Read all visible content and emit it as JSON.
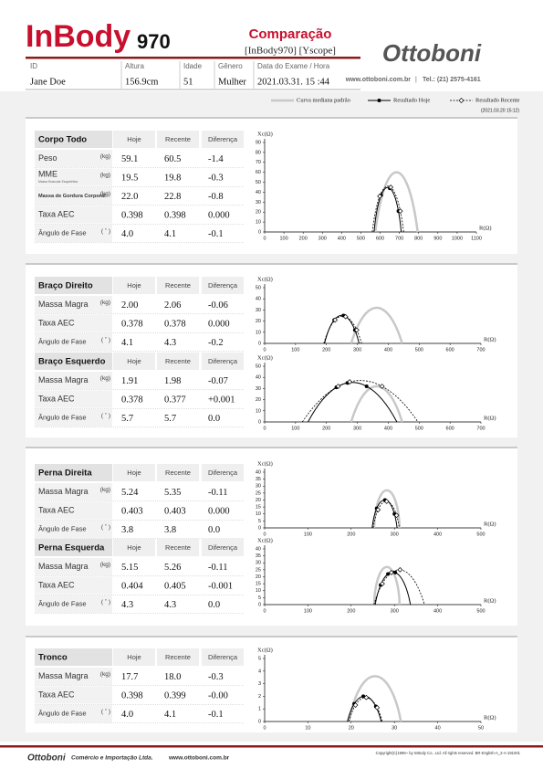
{
  "header": {
    "brand": "InBody",
    "model": "970",
    "title": "Comparação",
    "subtitle": "[InBody970] [Yscope]",
    "company": "Ottoboni",
    "website": "www.ottoboni.com.br",
    "phone": "Tel.: (21) 2575-4161"
  },
  "info": {
    "labels": [
      "ID",
      "Altura",
      "Idade",
      "Gênero",
      "Data do Exame / Hora"
    ],
    "values": [
      "Jane Doe",
      "156.9cm",
      "51",
      "Mulher",
      "2021.03.31. 15 :44"
    ]
  },
  "legend": {
    "items": [
      "Curva mediana padrão",
      "Resultado Hoje",
      "Resultado Recente"
    ],
    "date": "(2021.03.20 15:12)"
  },
  "tables": [
    {
      "title": "Corpo Todo",
      "columns": [
        "Hoje",
        "Recente",
        "Diferença"
      ],
      "rows": [
        {
          "label": "Peso",
          "unit": "(kg)",
          "values": [
            "59.1",
            "60.5",
            "-1.4"
          ]
        },
        {
          "label": "MME",
          "sublabel": "Massa Muscular Esquelética",
          "unit": "(kg)",
          "values": [
            "19.5",
            "19.8",
            "-0.3"
          ]
        },
        {
          "label": "Massa de Gordura Corporal",
          "unit": "(kg)",
          "values": [
            "22.0",
            "22.8",
            "-0.8"
          ]
        },
        {
          "label": "Taxa AEC",
          "values": [
            "0.398",
            "0.398",
            "0.000"
          ]
        },
        {
          "label": "Ângulo de Fase",
          "unit": "( ˚ )",
          "values": [
            "4.0",
            "4.1",
            "-0.1"
          ]
        }
      ]
    },
    {
      "title": "Braço Direito",
      "columns": [
        "Hoje",
        "Recente",
        "Diferença"
      ],
      "rows": [
        {
          "label": "Massa Magra",
          "unit": "(kg)",
          "values": [
            "2.00",
            "2.06",
            "-0.06"
          ]
        },
        {
          "label": "Taxa AEC",
          "values": [
            "0.378",
            "0.378",
            "0.000"
          ]
        },
        {
          "label": "Ângulo de Fase",
          "unit": "( ˚ )",
          "values": [
            "4.1",
            "4.3",
            "-0.2"
          ]
        }
      ]
    },
    {
      "title": "Braço Esquerdo",
      "columns": [
        "Hoje",
        "Recente",
        "Diferença"
      ],
      "rows": [
        {
          "label": "Massa Magra",
          "unit": "(kg)",
          "values": [
            "1.91",
            "1.98",
            "-0.07"
          ]
        },
        {
          "label": "Taxa AEC",
          "values": [
            "0.378",
            "0.377",
            "+0.001"
          ]
        },
        {
          "label": "Ângulo de Fase",
          "unit": "( ˚ )",
          "values": [
            "5.7",
            "5.7",
            "0.0"
          ]
        }
      ]
    },
    {
      "title": "Perna Direita",
      "columns": [
        "Hoje",
        "Recente",
        "Diferença"
      ],
      "rows": [
        {
          "label": "Massa Magra",
          "unit": "(kg)",
          "values": [
            "5.24",
            "5.35",
            "-0.11"
          ]
        },
        {
          "label": "Taxa AEC",
          "values": [
            "0.403",
            "0.403",
            "0.000"
          ]
        },
        {
          "label": "Ângulo de Fase",
          "unit": "( ˚ )",
          "values": [
            "3.8",
            "3.8",
            "0.0"
          ]
        }
      ]
    },
    {
      "title": "Perna Esquerda",
      "columns": [
        "Hoje",
        "Recente",
        "Diferença"
      ],
      "rows": [
        {
          "label": "Massa Magra",
          "unit": "(kg)",
          "values": [
            "5.15",
            "5.26",
            "-0.11"
          ]
        },
        {
          "label": "Taxa AEC",
          "values": [
            "0.404",
            "0.405",
            "-0.001"
          ]
        },
        {
          "label": "Ângulo de Fase",
          "unit": "( ˚ )",
          "values": [
            "4.3",
            "4.3",
            "0.0"
          ]
        }
      ]
    },
    {
      "title": "Tronco",
      "columns": [
        "Hoje",
        "Recente",
        "Diferença"
      ],
      "rows": [
        {
          "label": "Massa Magra",
          "unit": "(kg)",
          "values": [
            "17.7",
            "18.0",
            "-0.3"
          ]
        },
        {
          "label": "Taxa AEC",
          "values": [
            "0.398",
            "0.399",
            "-0.00"
          ]
        },
        {
          "label": "Ângulo de Fase",
          "unit": "( ˚ )",
          "values": [
            "4.0",
            "4.1",
            "-0.1"
          ]
        }
      ]
    }
  ],
  "chart_data": [
    {
      "type": "scatter",
      "xlabel": "R(Ω)",
      "ylabel": "Xc(Ω)",
      "xlim": [
        0,
        1100
      ],
      "ylim": [
        0,
        90
      ],
      "xticks": [
        0,
        100,
        200,
        300,
        400,
        500,
        600,
        700,
        800,
        900,
        1000,
        1100
      ],
      "yticks": [
        0,
        10,
        20,
        30,
        40,
        50,
        60,
        70,
        80,
        90
      ],
      "series": [
        {
          "color": "#c8c8c8",
          "line": "solid",
          "marker": "none",
          "x": [
            575,
            685,
            795
          ],
          "values": [
            0,
            60,
            0
          ]
        },
        {
          "color": "#000000",
          "line": "solid",
          "marker": "circle",
          "x": [
            605,
            650,
            695
          ],
          "values": [
            37,
            44,
            21
          ]
        },
        {
          "color": "#000000",
          "line": "dashed",
          "marker": "diamond",
          "x": [
            598,
            655,
            705
          ],
          "values": [
            36,
            45,
            21
          ]
        }
      ]
    },
    {
      "type": "scatter",
      "xlabel": "R(Ω)",
      "ylabel": "Xc(Ω)",
      "xlim": [
        0,
        700
      ],
      "ylim": [
        0,
        50
      ],
      "xticks": [
        0,
        100,
        200,
        300,
        400,
        500,
        600,
        700
      ],
      "yticks": [
        0,
        10,
        20,
        30,
        40,
        50
      ],
      "series": [
        {
          "color": "#c8c8c8",
          "line": "solid",
          "marker": "none",
          "x": [
            280,
            362,
            445
          ],
          "values": [
            0,
            32,
            0
          ]
        },
        {
          "color": "#000000",
          "line": "solid",
          "marker": "circle",
          "x": [
            225,
            255,
            292
          ],
          "values": [
            21,
            25,
            12
          ]
        },
        {
          "color": "#000000",
          "line": "dashed",
          "marker": "diamond",
          "x": [
            228,
            262,
            298
          ],
          "values": [
            21,
            24,
            12
          ]
        }
      ]
    },
    {
      "type": "scatter",
      "xlabel": "R(Ω)",
      "ylabel": "Xc(Ω)",
      "xlim": [
        0,
        700
      ],
      "ylim": [
        0,
        50
      ],
      "xticks": [
        0,
        100,
        200,
        300,
        400,
        500,
        600,
        700
      ],
      "yticks": [
        0,
        10,
        20,
        30,
        40,
        50
      ],
      "series": [
        {
          "color": "#c8c8c8",
          "line": "solid",
          "marker": "none",
          "x": [
            280,
            362,
            445
          ],
          "values": [
            0,
            32,
            0
          ]
        },
        {
          "color": "#000000",
          "line": "solid",
          "marker": "circle",
          "x": [
            232,
            268,
            330
          ],
          "values": [
            31,
            35,
            32
          ]
        },
        {
          "color": "#000000",
          "line": "dashed",
          "marker": "diamond",
          "x": [
            238,
            275,
            380
          ],
          "values": [
            32,
            36,
            32
          ]
        }
      ]
    },
    {
      "type": "scatter",
      "xlabel": "R(Ω)",
      "ylabel": "Xc(Ω)",
      "xlim": [
        0,
        500
      ],
      "ylim": [
        0,
        40
      ],
      "xticks": [
        0,
        100,
        200,
        300,
        400,
        500
      ],
      "yticks": [
        0,
        5,
        10,
        15,
        20,
        25,
        30,
        35,
        40
      ],
      "series": [
        {
          "color": "#c8c8c8",
          "line": "solid",
          "marker": "none",
          "x": [
            253,
            283,
            312
          ],
          "values": [
            0,
            27,
            0
          ]
        },
        {
          "color": "#000000",
          "line": "solid",
          "marker": "circle",
          "x": [
            259,
            278,
            300
          ],
          "values": [
            14,
            20,
            10
          ]
        },
        {
          "color": "#000000",
          "line": "dashed",
          "marker": "diamond",
          "x": [
            262,
            282,
            305
          ],
          "values": [
            13,
            19,
            9
          ]
        }
      ]
    },
    {
      "type": "scatter",
      "xlabel": "R(Ω)",
      "ylabel": "Xc(Ω)",
      "xlim": [
        0,
        500
      ],
      "ylim": [
        0,
        40
      ],
      "xticks": [
        0,
        100,
        200,
        300,
        400,
        500
      ],
      "yticks": [
        0,
        5,
        10,
        15,
        20,
        25,
        30,
        35,
        40
      ],
      "series": [
        {
          "color": "#c8c8c8",
          "line": "solid",
          "marker": "none",
          "x": [
            253,
            283,
            312
          ],
          "values": [
            0,
            27,
            0
          ]
        },
        {
          "color": "#000000",
          "line": "solid",
          "marker": "circle",
          "x": [
            268,
            285,
            302
          ],
          "values": [
            14,
            22,
            23
          ]
        },
        {
          "color": "#000000",
          "line": "dashed",
          "marker": "diamond",
          "x": [
            272,
            293,
            313
          ],
          "values": [
            15,
            23,
            25
          ]
        }
      ]
    },
    {
      "type": "scatter",
      "xlabel": "R(Ω)",
      "ylabel": "Xc(Ω)",
      "xlim": [
        0,
        50
      ],
      "ylim": [
        0,
        5
      ],
      "xticks": [
        0,
        10,
        20,
        30,
        40,
        50
      ],
      "yticks": [
        0,
        1,
        2,
        3,
        4,
        5
      ],
      "series": [
        {
          "color": "#c8c8c8",
          "line": "solid",
          "marker": "none",
          "x": [
            19.5,
            25.5,
            31.5
          ],
          "values": [
            0,
            3.6,
            0
          ]
        },
        {
          "color": "#000000",
          "line": "solid",
          "marker": "circle",
          "x": [
            20.7,
            22.8,
            25.7
          ],
          "values": [
            1.4,
            2.0,
            1.2
          ]
        },
        {
          "color": "#000000",
          "line": "dashed",
          "marker": "diamond",
          "x": [
            21,
            23.5,
            26
          ],
          "values": [
            1.3,
            1.9,
            1.1
          ]
        }
      ]
    }
  ],
  "footer": {
    "company": "Ottoboni",
    "tagline": "Comércio e Importação Ltda.",
    "website": "www.ottoboni.com.br",
    "copyright": "Copyright(C)1996~ by InBody Co., Ltd. All rights reserved. BR-English-A_2-A-191001"
  }
}
